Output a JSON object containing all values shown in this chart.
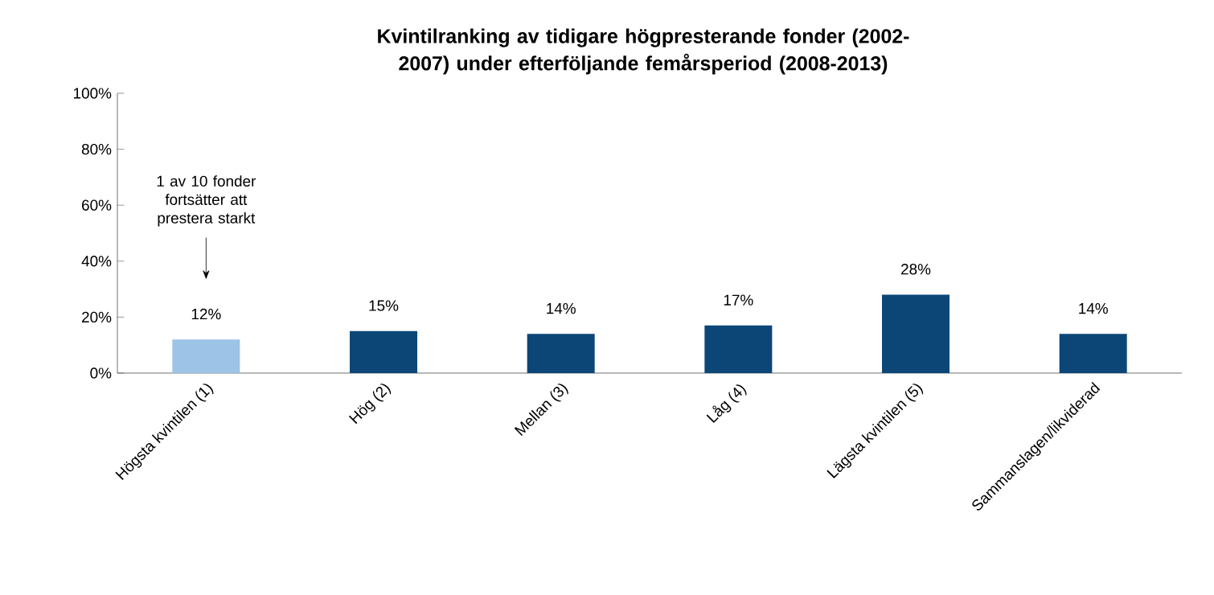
{
  "chart_data": {
    "type": "bar",
    "title": "Kvintilranking av tidigare högpresterande fonder (2002-2007) under efterföljande femårsperiod (2008-2013)",
    "categories": [
      "Högsta kvintilen (1)",
      "Hög (2)",
      "Mellan (3)",
      "Låg (4)",
      "Lägsta kvintilen (5)",
      "Sammanslagen/likviderad"
    ],
    "values": [
      12,
      15,
      14,
      17,
      28,
      14
    ],
    "colors": [
      "#9dc3e6",
      "#0b4677",
      "#0b4677",
      "#0b4677",
      "#0b4677",
      "#0b4677"
    ],
    "value_labels": [
      "12%",
      "15%",
      "14%",
      "17%",
      "28%",
      "14%"
    ],
    "ylim": [
      0,
      100
    ],
    "yticks": [
      {
        "value": 0,
        "label": "0%"
      },
      {
        "value": 20,
        "label": "20%"
      },
      {
        "value": 40,
        "label": "40%"
      },
      {
        "value": 60,
        "label": "60%"
      },
      {
        "value": 80,
        "label": "80%"
      },
      {
        "value": 100,
        "label": "100%"
      }
    ],
    "annotations": [
      "1 av 10 fonder fortsätter att prestera starkt"
    ],
    "grid": false
  }
}
